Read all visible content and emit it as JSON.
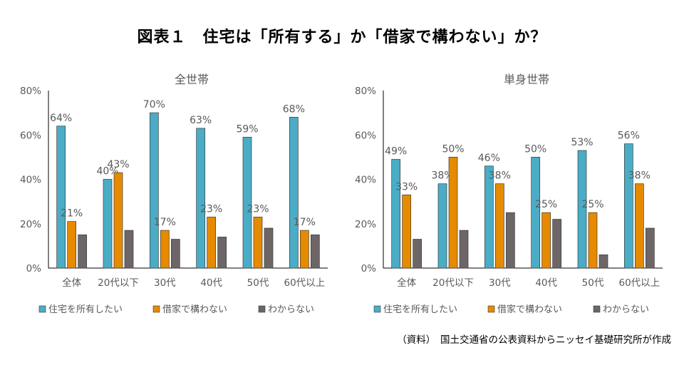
{
  "title": "図表１　住宅は「所有する」か「借家で構わない」か？",
  "source": "（資料）　国土交通省の公表資料からニッセイ基礎研究所が作成",
  "colors": {
    "own": "#4BACC6",
    "rent": "#E68A00",
    "unknown": "#6E6666",
    "text": "#595959",
    "axis": "#000000"
  },
  "chart_data": [
    {
      "type": "bar",
      "title": "全世帯",
      "categories": [
        "全体",
        "20代以下",
        "30代",
        "40代",
        "50代",
        "60代以上"
      ],
      "yticks": [
        "0%",
        "20%",
        "40%",
        "60%",
        "80%"
      ],
      "ylim": [
        0,
        80
      ],
      "legend_position": "bottom",
      "series": [
        {
          "name": "住宅を所有したい",
          "key": "own",
          "values": [
            64,
            40,
            70,
            63,
            59,
            68
          ],
          "labels": [
            "64%",
            "40%",
            "70%",
            "63%",
            "59%",
            "68%"
          ]
        },
        {
          "name": "借家で構わない",
          "key": "rent",
          "values": [
            21,
            43,
            17,
            23,
            23,
            17
          ],
          "labels": [
            "21%",
            "43%",
            "17%",
            "23%",
            "23%",
            "17%"
          ]
        },
        {
          "name": "わからない",
          "key": "unknown",
          "values": [
            15,
            17,
            13,
            14,
            18,
            15
          ],
          "labels": []
        }
      ]
    },
    {
      "type": "bar",
      "title": "単身世帯",
      "categories": [
        "全体",
        "20代以下",
        "30代",
        "40代",
        "50代",
        "60代以上"
      ],
      "yticks": [
        "0%",
        "20%",
        "40%",
        "60%",
        "80%"
      ],
      "ylim": [
        0,
        80
      ],
      "legend_position": "bottom",
      "series": [
        {
          "name": "住宅を所有したい",
          "key": "own",
          "values": [
            49,
            38,
            46,
            50,
            53,
            56
          ],
          "labels": [
            "49%",
            "38%",
            "46%",
            "50%",
            "53%",
            "56%"
          ]
        },
        {
          "name": "借家で構わない",
          "key": "rent",
          "values": [
            33,
            50,
            38,
            25,
            25,
            38
          ],
          "labels": [
            "33%",
            "50%",
            "38%",
            "25%",
            "25%",
            "38%"
          ]
        },
        {
          "name": "わからない",
          "key": "unknown",
          "values": [
            13,
            17,
            25,
            22,
            6,
            18
          ],
          "labels": []
        }
      ]
    }
  ]
}
